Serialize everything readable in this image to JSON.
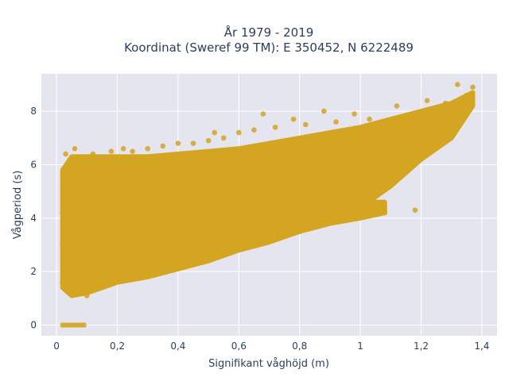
{
  "chart_data": {
    "type": "scatter",
    "title_line1": "År 1979 - 2019",
    "title_line2": "Koordinat (Sweref 99 TM): E 350452, N 6222489",
    "xlabel": "Signifikant våghöjd (m)",
    "ylabel": "Vågperiod (s)",
    "xlim": [
      -0.05,
      1.45
    ],
    "ylim": [
      -0.4,
      9.4
    ],
    "x_ticks": [
      0,
      0.2,
      0.4,
      0.6,
      0.8,
      1,
      1.2,
      1.4
    ],
    "x_tick_labels": [
      "0",
      "0,2",
      "0,4",
      "0,6",
      "0,8",
      "1",
      "1,2",
      "1,4"
    ],
    "y_ticks": [
      0,
      2,
      4,
      6,
      8
    ],
    "y_tick_labels": [
      "0",
      "2",
      "4",
      "6",
      "8"
    ],
    "grid": true,
    "marker_color": "#D4A520",
    "plot_background": "#E5E5F0",
    "points": [
      [
        0.02,
        0
      ],
      [
        0.03,
        0
      ],
      [
        0.04,
        0
      ],
      [
        0.05,
        0
      ],
      [
        0.06,
        0
      ],
      [
        0.07,
        0
      ],
      [
        0.08,
        0
      ],
      [
        0.09,
        0
      ],
      [
        0.02,
        1.6
      ],
      [
        0.02,
        3.0
      ],
      [
        0.02,
        4.2
      ],
      [
        0.03,
        5.6
      ],
      [
        0.03,
        6.4
      ],
      [
        0.04,
        2.8
      ],
      [
        0.05,
        1.2
      ],
      [
        0.05,
        5.9
      ],
      [
        0.06,
        4.5
      ],
      [
        0.06,
        6.6
      ],
      [
        0.07,
        1.5
      ],
      [
        0.08,
        3.6
      ],
      [
        0.1,
        1.1
      ],
      [
        0.1,
        6.2
      ],
      [
        0.12,
        2.0
      ],
      [
        0.12,
        6.4
      ],
      [
        0.15,
        1.5
      ],
      [
        0.15,
        4.0
      ],
      [
        0.18,
        6.5
      ],
      [
        0.2,
        1.7
      ],
      [
        0.2,
        3.2
      ],
      [
        0.22,
        5.2
      ],
      [
        0.22,
        6.6
      ],
      [
        0.25,
        1.8
      ],
      [
        0.25,
        6.5
      ],
      [
        0.28,
        2.5
      ],
      [
        0.3,
        1.9
      ],
      [
        0.3,
        6.6
      ],
      [
        0.33,
        4.6
      ],
      [
        0.35,
        2.1
      ],
      [
        0.35,
        6.7
      ],
      [
        0.38,
        3.3
      ],
      [
        0.4,
        2.2
      ],
      [
        0.4,
        6.8
      ],
      [
        0.43,
        5.0
      ],
      [
        0.45,
        2.4
      ],
      [
        0.45,
        6.8
      ],
      [
        0.48,
        3.8
      ],
      [
        0.5,
        2.6
      ],
      [
        0.5,
        6.9
      ],
      [
        0.52,
        7.2
      ],
      [
        0.53,
        4.4
      ],
      [
        0.55,
        2.8
      ],
      [
        0.55,
        7.0
      ],
      [
        0.58,
        5.6
      ],
      [
        0.6,
        3.0
      ],
      [
        0.6,
        7.2
      ],
      [
        0.63,
        4.2
      ],
      [
        0.65,
        3.1
      ],
      [
        0.65,
        7.3
      ],
      [
        0.68,
        7.9
      ],
      [
        0.7,
        3.3
      ],
      [
        0.7,
        5.1
      ],
      [
        0.72,
        7.4
      ],
      [
        0.75,
        3.6
      ],
      [
        0.75,
        5.3
      ],
      [
        0.78,
        7.7
      ],
      [
        0.8,
        3.7
      ],
      [
        0.8,
        5.5
      ],
      [
        0.82,
        7.5
      ],
      [
        0.85,
        3.9
      ],
      [
        0.85,
        5.8
      ],
      [
        0.88,
        8.0
      ],
      [
        0.9,
        4.1
      ],
      [
        0.9,
        6.0
      ],
      [
        0.92,
        7.6
      ],
      [
        0.95,
        4.3
      ],
      [
        0.95,
        6.1
      ],
      [
        0.98,
        7.9
      ],
      [
        1.0,
        4.4
      ],
      [
        1.0,
        6.2
      ],
      [
        1.03,
        7.7
      ],
      [
        1.05,
        4.5
      ],
      [
        1.05,
        6.4
      ],
      [
        1.08,
        4.2
      ],
      [
        1.1,
        6.6
      ],
      [
        1.12,
        8.2
      ],
      [
        1.15,
        6.8
      ],
      [
        1.18,
        4.3
      ],
      [
        1.2,
        7.0
      ],
      [
        1.22,
        8.4
      ],
      [
        1.25,
        7.4
      ],
      [
        1.28,
        8.3
      ],
      [
        1.3,
        7.6
      ],
      [
        1.32,
        9.0
      ],
      [
        1.35,
        8.6
      ],
      [
        1.37,
        8.9
      ]
    ],
    "bands": [
      {
        "x": [
          0.02,
          0.05,
          0.1,
          0.2,
          0.3,
          0.4,
          0.5,
          0.6,
          0.7,
          0.8,
          0.9,
          1.0,
          1.1,
          1.2,
          1.3,
          1.37
        ],
        "y_min": [
          1.4,
          1.1,
          1.2,
          1.6,
          1.8,
          2.1,
          2.4,
          2.8,
          3.1,
          3.5,
          4.0,
          4.4,
          5.2,
          6.2,
          7.0,
          8.2
        ],
        "y_max": [
          5.8,
          6.3,
          6.3,
          6.3,
          6.3,
          6.4,
          6.5,
          6.6,
          6.8,
          7.0,
          7.2,
          7.4,
          7.7,
          8.0,
          8.3,
          8.7
        ]
      },
      {
        "x": [
          0.05,
          0.1,
          0.2,
          0.3,
          0.4,
          0.5,
          0.6,
          0.7,
          0.8,
          0.9,
          1.0,
          1.08
        ],
        "y_min": [
          1.5,
          1.6,
          2.0,
          2.3,
          2.5,
          2.7,
          3.0,
          3.2,
          3.5,
          3.8,
          4.0,
          4.2
        ],
        "y_max": [
          4.2,
          4.0,
          4.0,
          4.0,
          4.0,
          4.1,
          4.2,
          4.3,
          4.4,
          4.5,
          4.6,
          4.6
        ]
      }
    ]
  }
}
